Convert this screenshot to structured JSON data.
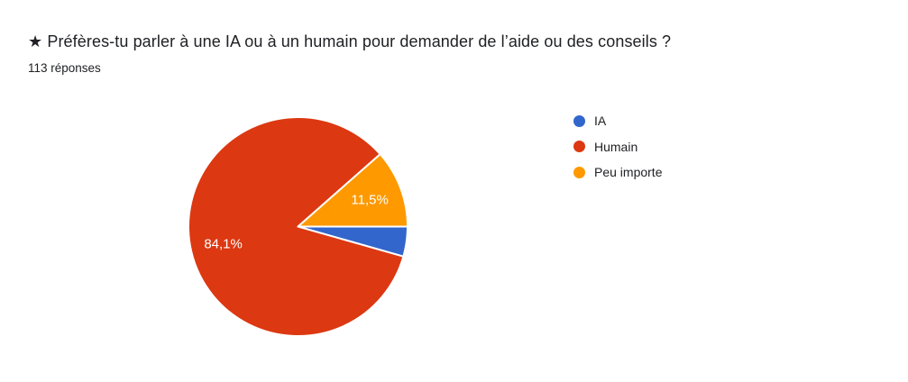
{
  "header": {
    "title": "★ Préfères-tu parler à une IA ou à un humain pour demander de l’aide ou des conseils ?",
    "response_count": "113 réponses"
  },
  "chart_data": {
    "type": "pie",
    "labels": [
      "IA",
      "Humain",
      "Peu importe"
    ],
    "values": [
      4.4,
      84.1,
      11.5
    ],
    "unit": "percent",
    "slice_labels": [
      "",
      "84,1%",
      "11,5%"
    ],
    "colors": [
      "#3366CC",
      "#DC3912",
      "#FF9900"
    ],
    "slice_label_color": "#ffffff",
    "start_angle_deg": 0,
    "direction": "clockwise",
    "legend_position": "right",
    "background": "#ffffff"
  }
}
